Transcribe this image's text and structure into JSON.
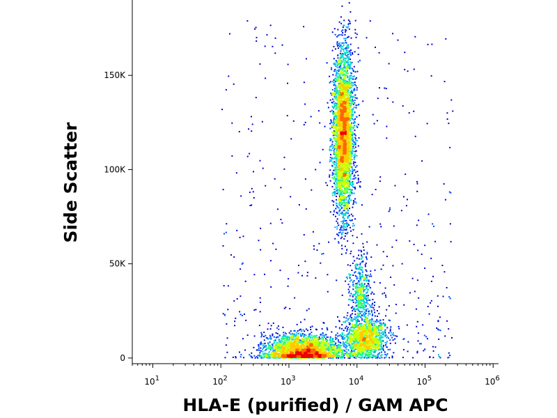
{
  "chart_data": {
    "type": "scatter",
    "title": "",
    "xlabel": "HLA-E (purified) / GAM APC",
    "ylabel": "Side Scatter",
    "x_scale": "log",
    "xlim": [
      5,
      1200000
    ],
    "ylim": [
      -3000,
      190000
    ],
    "x_ticks": [
      {
        "value": 10,
        "exp": "1"
      },
      {
        "value": 100,
        "exp": "2"
      },
      {
        "value": 1000,
        "exp": "3"
      },
      {
        "value": 10000,
        "exp": "4"
      },
      {
        "value": 100000,
        "exp": "5"
      },
      {
        "value": 1000000,
        "exp": "6"
      }
    ],
    "y_ticks": [
      {
        "value": 0,
        "label": "0"
      },
      {
        "value": 50000,
        "label": "50K"
      },
      {
        "value": 100000,
        "label": "100K"
      },
      {
        "value": 150000,
        "label": "150K"
      }
    ],
    "density_colormap": [
      "#0000cc",
      "#0044ff",
      "#00aaff",
      "#00e0c0",
      "#33ff66",
      "#ccff00",
      "#ffcc00",
      "#ff6600",
      "#ee0000"
    ],
    "populations": [
      {
        "x_center": 1600,
        "y_center": 4000,
        "x_spread_decades": 0.28,
        "y_spread": 4500,
        "events": 2600
      },
      {
        "x_center": 13000,
        "y_center": 11000,
        "x_spread_decades": 0.16,
        "y_spread": 5500,
        "events": 1300
      },
      {
        "x_center": 6200,
        "y_center": 120000,
        "x_spread_decades": 0.075,
        "y_spread": 22000,
        "events": 3600
      },
      {
        "x_center": 11000,
        "y_center": 36000,
        "x_spread_decades": 0.08,
        "y_spread": 9000,
        "events": 450
      }
    ]
  }
}
